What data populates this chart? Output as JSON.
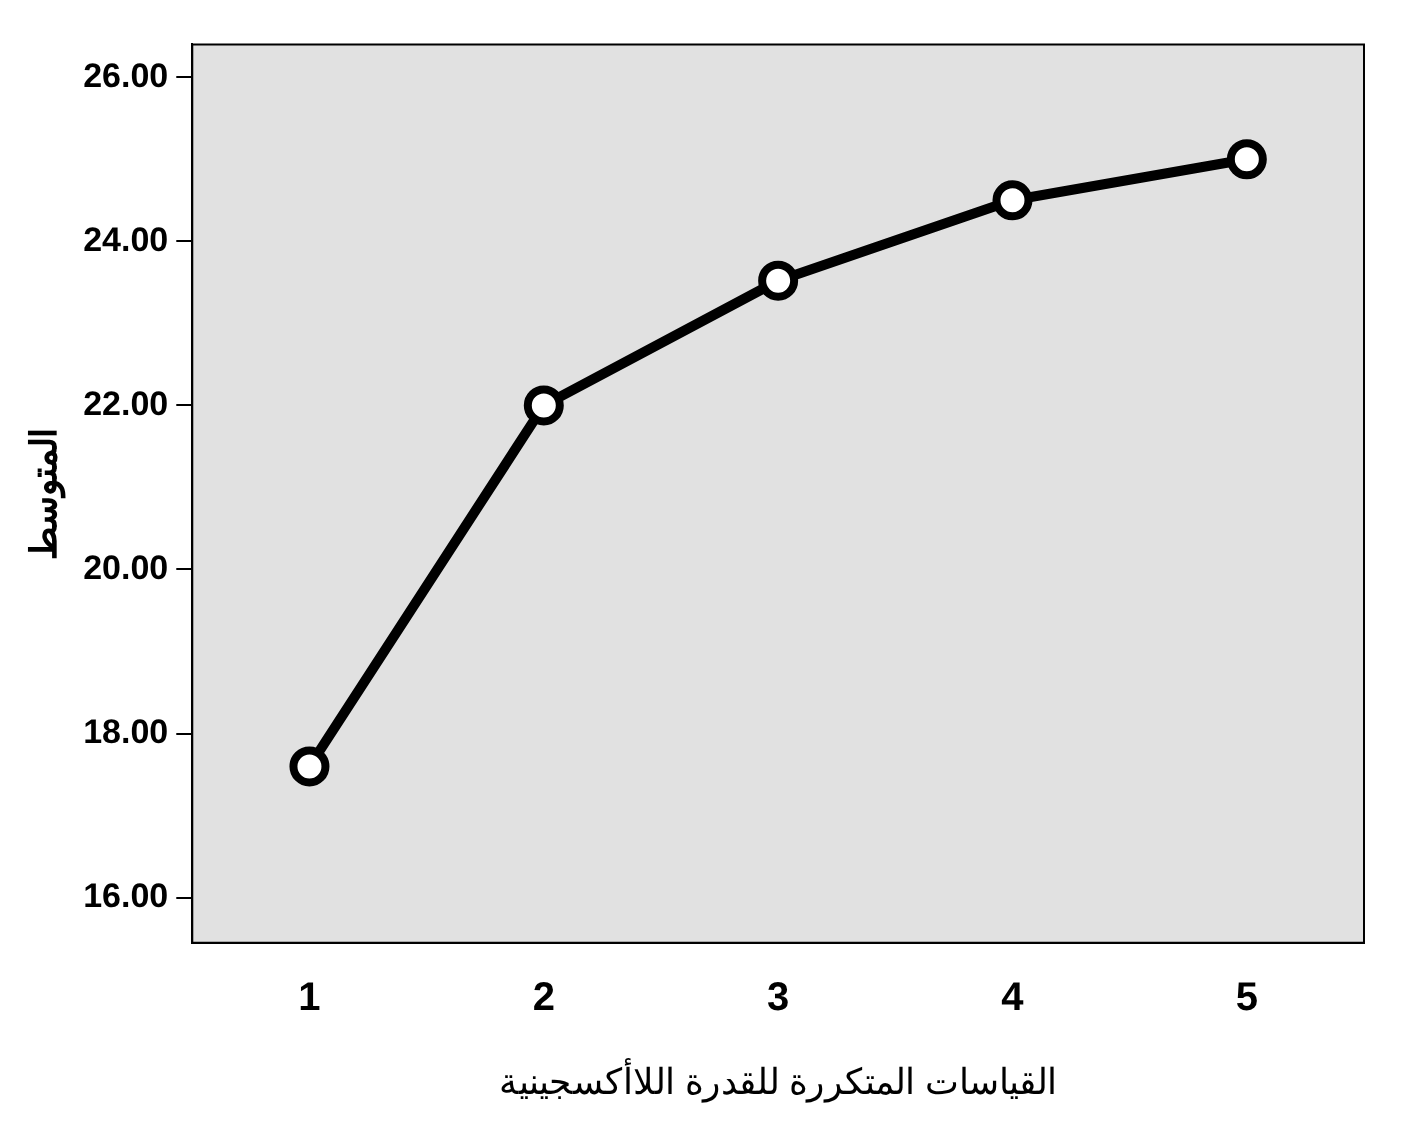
{
  "chart_data": {
    "type": "line",
    "xlabel": "القياسات المتكررة للقدرة اللاأكسجينية",
    "ylabel": "المتوسط",
    "categories": [
      "1",
      "2",
      "3",
      "4",
      "5"
    ],
    "series": [
      {
        "color": "#000000",
        "values": [
          17.6,
          22.0,
          23.52,
          24.5,
          25.0
        ]
      }
    ],
    "ylim": [
      15.45,
      26.4
    ],
    "yticks": [
      {
        "value": 16,
        "label": "16.00"
      },
      {
        "value": 18,
        "label": "18.00"
      },
      {
        "value": 20,
        "label": "20.00"
      },
      {
        "value": 22,
        "label": "22.00"
      },
      {
        "value": 24,
        "label": "24.00"
      },
      {
        "value": 26,
        "label": "26.00"
      }
    ],
    "marker": "circle",
    "line_style": "solid",
    "grid": false,
    "legend": false
  }
}
